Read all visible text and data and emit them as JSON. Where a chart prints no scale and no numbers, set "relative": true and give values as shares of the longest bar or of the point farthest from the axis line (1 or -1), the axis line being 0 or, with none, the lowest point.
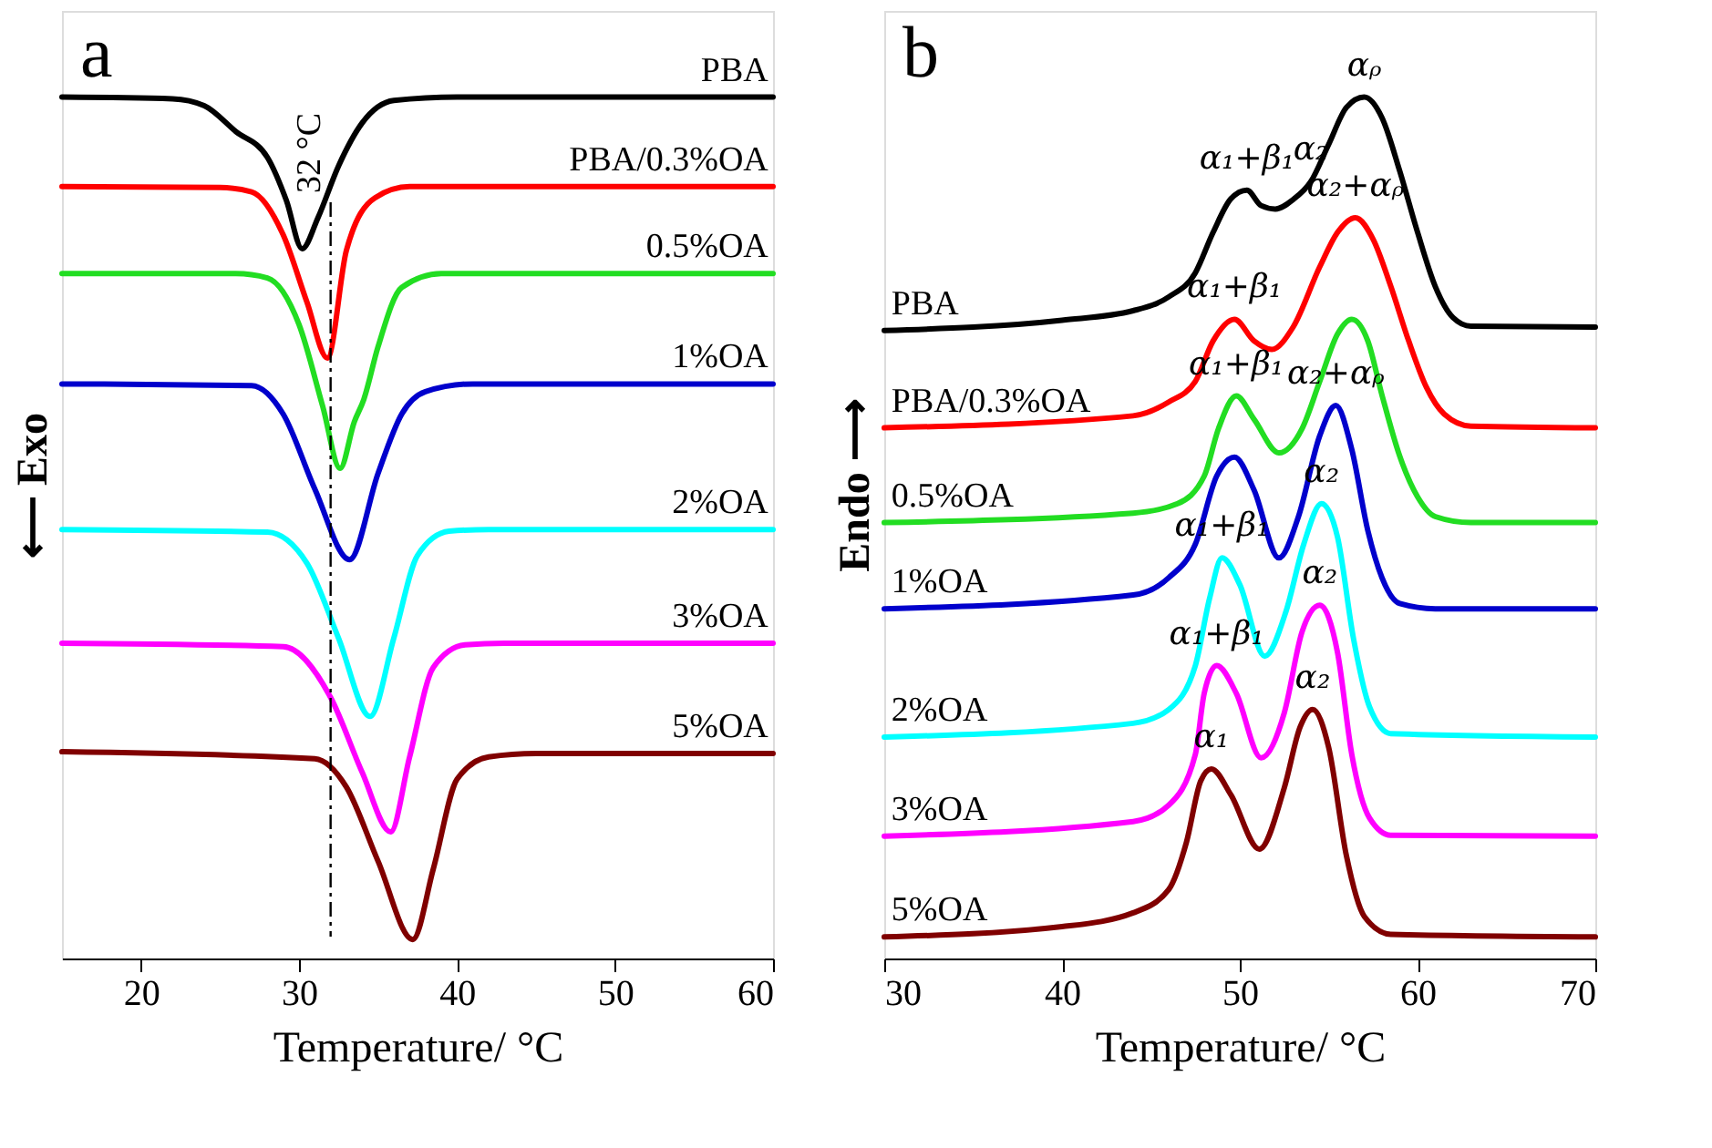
{
  "chart_data": [
    {
      "type": "line",
      "relative": true,
      "xlabel": "Temperature/ °C",
      "ylabel": "⟵ Exo",
      "xlim": [
        15,
        60
      ],
      "xticks": [
        20,
        30,
        40,
        50,
        60
      ],
      "annotations": [
        "a"
      ],
      "ref_lines": [
        {
          "axis": "x",
          "value": 32,
          "label": "32 °C",
          "color": "#000000",
          "line_style": "dashed"
        }
      ],
      "series": [
        {
          "name": "PBA",
          "color": "#000000",
          "x": [
            15,
            22,
            24,
            26,
            28,
            29.2,
            30.2,
            31.2,
            32.5,
            34,
            36,
            40,
            60
          ],
          "values": [
            1.0,
            0.998,
            0.99,
            0.96,
            0.93,
            0.88,
            0.824,
            0.86,
            0.92,
            0.97,
            0.996,
            1.0,
            1.0
          ]
        },
        {
          "name": "PBA/0.3%OA",
          "color": "#ff0000",
          "x": [
            15,
            25,
            27,
            29,
            30.5,
            31.8,
            33,
            34.8,
            37,
            60
          ],
          "values": [
            0.896,
            0.895,
            0.89,
            0.84,
            0.762,
            0.697,
            0.822,
            0.883,
            0.896,
            0.896
          ]
        },
        {
          "name": "0.5%OA",
          "color": "#22dd22",
          "x": [
            15,
            26,
            28,
            30,
            31.5,
            32.6,
            33.5,
            34.1,
            35,
            36.5,
            39,
            60
          ],
          "values": [
            0.795,
            0.795,
            0.79,
            0.736,
            0.641,
            0.569,
            0.623,
            0.649,
            0.71,
            0.779,
            0.795,
            0.795
          ]
        },
        {
          "name": "1%OA",
          "color": "#0000cc",
          "x": [
            15,
            27,
            29,
            31,
            33.2,
            35,
            36.5,
            38,
            41,
            60
          ],
          "values": [
            0.667,
            0.665,
            0.632,
            0.545,
            0.463,
            0.563,
            0.632,
            0.658,
            0.667,
            0.667
          ]
        },
        {
          "name": "2%OA",
          "color": "#00ffff",
          "x": [
            15,
            28,
            30.5,
            32.5,
            34.5,
            36,
            37.5,
            39.5,
            42,
            60
          ],
          "values": [
            0.498,
            0.495,
            0.459,
            0.372,
            0.281,
            0.372,
            0.468,
            0.496,
            0.498,
            0.498
          ]
        },
        {
          "name": "3%OA",
          "color": "#ff00ff",
          "x": [
            15,
            29,
            32,
            34,
            35.8,
            37,
            38.5,
            40.5,
            43,
            60
          ],
          "values": [
            0.366,
            0.362,
            0.303,
            0.216,
            0.147,
            0.234,
            0.338,
            0.364,
            0.366,
            0.366
          ]
        },
        {
          "name": "5%OA",
          "color": "#800000",
          "x": [
            15,
            31,
            33,
            35,
            37.2,
            38.5,
            40,
            42,
            45,
            60
          ],
          "values": [
            0.24,
            0.232,
            0.199,
            0.113,
            0.022,
            0.104,
            0.208,
            0.234,
            0.238,
            0.238
          ]
        }
      ]
    },
    {
      "type": "line",
      "relative": true,
      "xlabel": "Temperature/ °C",
      "ylabel": "Endo ⟶",
      "xlim": [
        30,
        70
      ],
      "xticks": [
        30,
        40,
        50,
        60,
        70
      ],
      "annotations": [
        "b",
        {
          "text": "α₁+β₁",
          "x": 50.4,
          "y": 0.892
        },
        {
          "text": "α₂",
          "x": 54,
          "y": 0.902
        },
        {
          "text": "αᵨ",
          "x": 57,
          "y": 1.0
        },
        {
          "text": "α₂+αᵨ",
          "x": 56.5,
          "y": 0.86
        },
        {
          "text": "α₁+β₁",
          "x": 49.7,
          "y": 0.742
        },
        {
          "text": "α₁+β₁",
          "x": 49.8,
          "y": 0.653
        },
        {
          "text": "α₂+αᵨ",
          "x": 55.4,
          "y": 0.642
        },
        {
          "text": "α₂",
          "x": 54.6,
          "y": 0.528
        },
        {
          "text": "α₁+β₁",
          "x": 49,
          "y": 0.465
        },
        {
          "text": "α₂",
          "x": 54.5,
          "y": 0.41
        },
        {
          "text": "α₁+β₁",
          "x": 48.7,
          "y": 0.34
        },
        {
          "text": "α₁",
          "x": 48.4,
          "y": 0.22
        },
        {
          "text": "α₂",
          "x": 54.1,
          "y": 0.289
        }
      ],
      "series": [
        {
          "name": "PBA",
          "color": "#000000",
          "x": [
            30,
            40,
            44,
            46,
            47.5,
            48.5,
            49.5,
            50.4,
            51.2,
            52,
            53,
            54,
            55,
            56,
            57,
            58,
            59,
            60,
            61,
            62,
            63,
            70
          ],
          "values": [
            0.729,
            0.741,
            0.752,
            0.768,
            0.796,
            0.843,
            0.882,
            0.892,
            0.874,
            0.87,
            0.881,
            0.902,
            0.945,
            0.988,
            1.0,
            0.976,
            0.914,
            0.843,
            0.78,
            0.744,
            0.734,
            0.733
          ]
        },
        {
          "name": "PBA/0.3%OA",
          "color": "#ff0000",
          "x": [
            30,
            44,
            46,
            47.5,
            48.5,
            49.7,
            50.8,
            51.8,
            53,
            54.5,
            55.5,
            56.5,
            57.5,
            58.5,
            59.5,
            60.5,
            61.5,
            63,
            70
          ],
          "values": [
            0.616,
            0.63,
            0.646,
            0.67,
            0.717,
            0.742,
            0.717,
            0.707,
            0.733,
            0.803,
            0.843,
            0.86,
            0.835,
            0.78,
            0.717,
            0.663,
            0.632,
            0.618,
            0.616
          ]
        },
        {
          "name": "0.5%OA",
          "color": "#22dd22",
          "x": [
            30,
            44,
            46.5,
            48,
            48.8,
            49.8,
            50.8,
            52.2,
            53.5,
            54.5,
            55.5,
            56.3,
            57.2,
            58,
            59,
            60,
            61,
            63,
            70
          ],
          "values": [
            0.506,
            0.517,
            0.528,
            0.56,
            0.615,
            0.653,
            0.626,
            0.587,
            0.615,
            0.67,
            0.725,
            0.742,
            0.717,
            0.654,
            0.583,
            0.536,
            0.513,
            0.506,
            0.506
          ]
        },
        {
          "name": "1%OA",
          "color": "#0000cc",
          "x": [
            30,
            44,
            46,
            47.5,
            48.7,
            49.7,
            50.8,
            52.2,
            53.3,
            54.5,
            55.4,
            56.3,
            57.2,
            58,
            59,
            61,
            70
          ],
          "values": [
            0.406,
            0.422,
            0.442,
            0.481,
            0.56,
            0.582,
            0.544,
            0.465,
            0.513,
            0.607,
            0.642,
            0.591,
            0.497,
            0.442,
            0.412,
            0.406,
            0.406
          ]
        },
        {
          "name": "2%OA",
          "color": "#00ffff",
          "x": [
            30,
            44,
            46,
            47.5,
            48.3,
            49,
            50,
            51.4,
            52.6,
            53.6,
            54.6,
            55.5,
            56.4,
            57.3,
            58.5,
            70
          ],
          "values": [
            0.257,
            0.273,
            0.289,
            0.34,
            0.418,
            0.465,
            0.434,
            0.351,
            0.403,
            0.481,
            0.528,
            0.489,
            0.371,
            0.292,
            0.261,
            0.257
          ]
        },
        {
          "name": "3%OA",
          "color": "#ff00ff",
          "x": [
            30,
            44,
            46,
            47.5,
            48,
            48.7,
            49.8,
            51.2,
            52.5,
            53.5,
            54.5,
            55.5,
            56.3,
            57.3,
            58.5,
            70
          ],
          "values": [
            0.142,
            0.159,
            0.178,
            0.237,
            0.308,
            0.34,
            0.308,
            0.233,
            0.285,
            0.379,
            0.41,
            0.355,
            0.237,
            0.163,
            0.143,
            0.142
          ]
        },
        {
          "name": "5%OA",
          "color": "#800000",
          "x": [
            30,
            40,
            44,
            46,
            47,
            47.8,
            48.4,
            49.5,
            51.1,
            52.5,
            53.4,
            54.1,
            55,
            56,
            57,
            58.5,
            70
          ],
          "values": [
            0.025,
            0.037,
            0.053,
            0.08,
            0.135,
            0.206,
            0.22,
            0.19,
            0.127,
            0.198,
            0.269,
            0.289,
            0.245,
            0.119,
            0.049,
            0.028,
            0.025
          ]
        }
      ]
    }
  ]
}
